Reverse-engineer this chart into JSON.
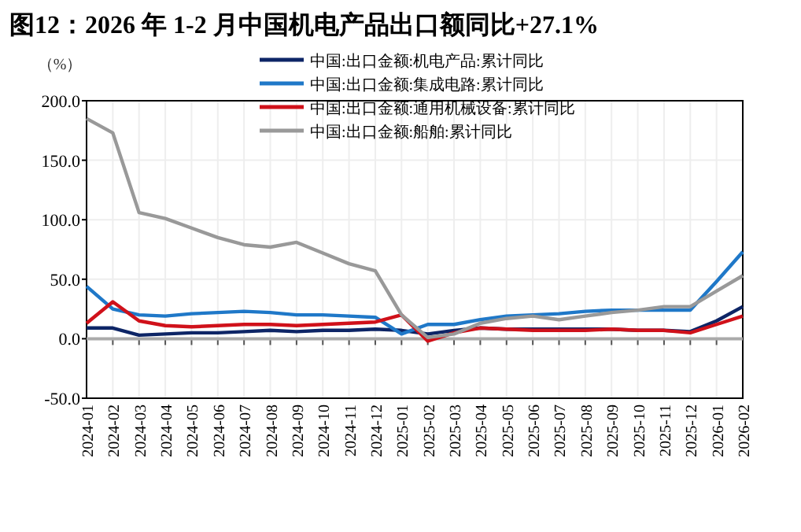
{
  "chart_data": {
    "type": "line",
    "title": "图12：2026 年 1-2 月中国机电产品出口额同比+27.1%",
    "ylabel": "（%）",
    "categories": [
      "2024-01",
      "2024-02",
      "2024-03",
      "2024-04",
      "2024-05",
      "2024-06",
      "2024-07",
      "2024-08",
      "2024-09",
      "2024-10",
      "2024-11",
      "2024-12",
      "2025-01",
      "2025-02",
      "2025-03",
      "2025-04",
      "2025-05",
      "2025-06",
      "2025-07",
      "2025-08",
      "2025-09",
      "2025-10",
      "2025-11",
      "2025-12",
      "2026-01",
      "2026-02"
    ],
    "ylim": [
      -50,
      200
    ],
    "yticks": [
      {
        "value": -50,
        "label": "-50.0"
      },
      {
        "value": 0,
        "label": "0.0"
      },
      {
        "value": 50,
        "label": "50.0"
      },
      {
        "value": 100,
        "label": "100.0"
      },
      {
        "value": 150,
        "label": "150.0"
      },
      {
        "value": 200,
        "label": "200.0"
      }
    ],
    "grid": true,
    "legend": "top",
    "marker": "none",
    "line_style": "solid",
    "series": [
      {
        "name": "中国:出口金额:机电产品:累计同比",
        "color": "#0d2566",
        "values": [
          9,
          9,
          3,
          4,
          5,
          5,
          6,
          7,
          6,
          7,
          7,
          8,
          7,
          4,
          7,
          9,
          8,
          8,
          8,
          8,
          8,
          7,
          7,
          6,
          15,
          27
        ]
      },
      {
        "name": "中国:出口金额:集成电路:累计同比",
        "color": "#1f78c8",
        "values": [
          44,
          25,
          20,
          19,
          21,
          22,
          23,
          22,
          20,
          20,
          19,
          18,
          4,
          12,
          12,
          16,
          19,
          20,
          21,
          23,
          24,
          24,
          24,
          24,
          48,
          73
        ]
      },
      {
        "name": "中国:出口金额:通用机械设备:累计同比",
        "color": "#d0111a",
        "values": [
          13,
          31,
          15,
          11,
          10,
          11,
          12,
          12,
          11,
          12,
          13,
          14,
          20,
          -2,
          5,
          9,
          8,
          7,
          7,
          7,
          8,
          7,
          7,
          5,
          12,
          19
        ]
      },
      {
        "name": "中国:出口金额:船舶:累计同比",
        "color": "#999999",
        "values": [
          185,
          173,
          106,
          101,
          93,
          85,
          79,
          77,
          81,
          72,
          63,
          57,
          20,
          1,
          4,
          13,
          17,
          19,
          16,
          19,
          22,
          24,
          27,
          27,
          40,
          53
        ]
      }
    ]
  }
}
